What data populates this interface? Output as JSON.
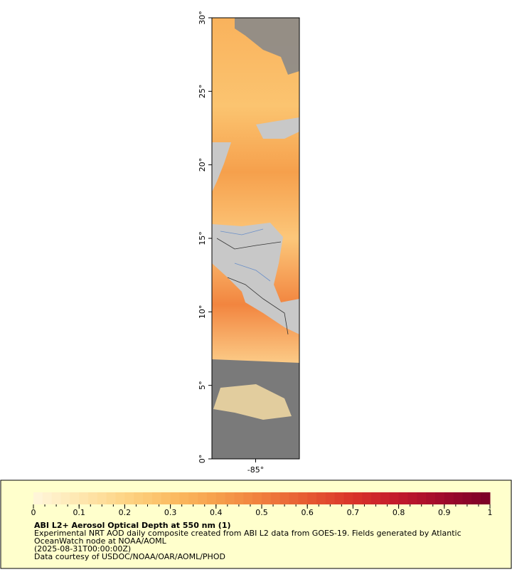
{
  "map": {
    "lat_axis": {
      "lim": [
        0,
        30
      ],
      "ticks": [
        {
          "value": 0,
          "label": "0°"
        },
        {
          "value": 5,
          "label": "5°"
        },
        {
          "value": 10,
          "label": "10°"
        },
        {
          "value": 15,
          "label": "15°"
        },
        {
          "value": 20,
          "label": "20°"
        },
        {
          "value": 25,
          "label": "25°"
        },
        {
          "value": 30,
          "label": "30°"
        }
      ]
    },
    "lon_axis": {
      "lim": [
        -86,
        -84
      ],
      "ticks": [
        {
          "value": -85,
          "label": "-85°"
        }
      ]
    }
  },
  "colorbar": {
    "lim": [
      0,
      1
    ],
    "ticks": [
      0,
      0.1,
      0.2,
      0.3,
      0.4,
      0.5,
      0.6,
      0.7,
      0.8,
      0.9,
      1
    ],
    "colors": [
      "#fff6dc",
      "#fee7b0",
      "#fdd485",
      "#fbbd62",
      "#f6a04c",
      "#f07f3e",
      "#e65a32",
      "#d93329",
      "#c21a2c",
      "#9e0a2c",
      "#7a0026"
    ]
  },
  "legend": {
    "title": "ABI L2+ Aerosol Optical Depth at 550 nm (1)",
    "description": [
      "Experimental NRT AOD daily composite created from ABI L2 data from GOES-19. Fields generated by Atlantic",
      "OceanWatch node at NOAA/AOML"
    ],
    "date": "(2025-08-31T00:00:00Z)",
    "credit": "Data courtesy of USDOC/NOAA/OAR/AOML/PHOD"
  }
}
